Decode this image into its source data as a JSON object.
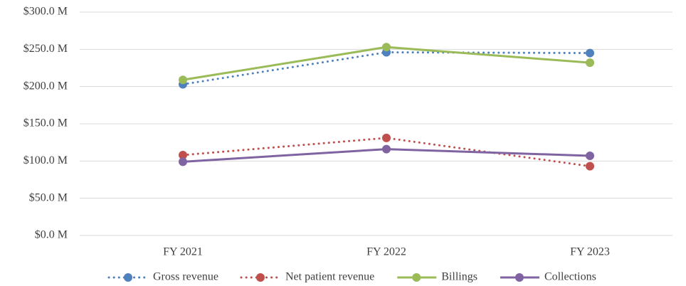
{
  "chart_data": {
    "type": "line",
    "categories": [
      "FY 2021",
      "FY 2022",
      "FY 2023"
    ],
    "series": [
      {
        "name": "Gross revenue",
        "color": "#4f81bd",
        "style": "dotted",
        "values": [
          203,
          246,
          245
        ]
      },
      {
        "name": "Net patient revenue",
        "color": "#c0504d",
        "style": "dotted",
        "values": [
          108,
          131,
          93
        ]
      },
      {
        "name": "Billings",
        "color": "#9bbb59",
        "style": "solid",
        "values": [
          209,
          253,
          232
        ]
      },
      {
        "name": "Collections",
        "color": "#8064a2",
        "style": "solid",
        "values": [
          99,
          116,
          107
        ]
      }
    ],
    "ylim": [
      0,
      300
    ],
    "yticks": [
      {
        "value": 0,
        "label": "$0.0 M"
      },
      {
        "value": 50,
        "label": "$50.0 M"
      },
      {
        "value": 100,
        "label": "$100.0 M"
      },
      {
        "value": 150,
        "label": "$150.0 M"
      },
      {
        "value": 200,
        "label": "$200.0 M"
      },
      {
        "value": 250,
        "label": "$250.0 M"
      },
      {
        "value": 300,
        "label": "$300.0 M"
      }
    ],
    "grid": true,
    "legend": "bottom"
  }
}
